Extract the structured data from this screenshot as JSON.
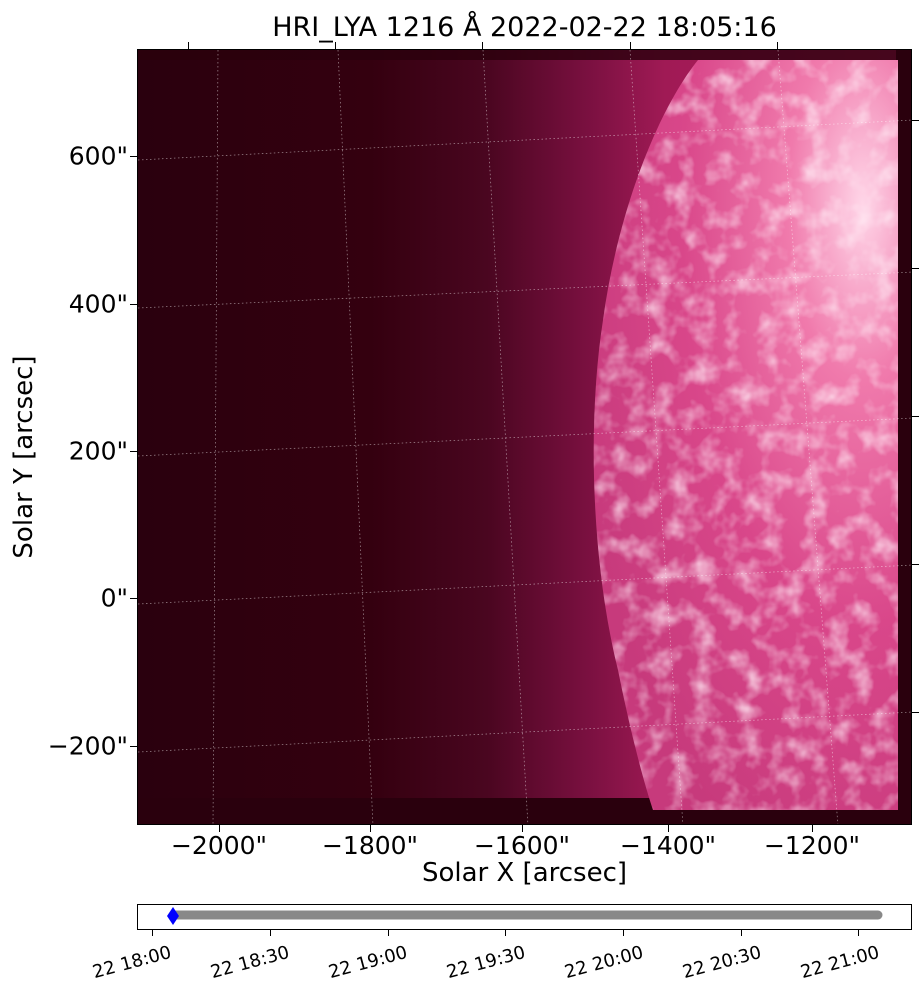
{
  "title": "HRI_LYA 1216 Å 2022-02-22 18:05:16",
  "xlabel": "Solar X [arcsec]",
  "ylabel": "Solar Y [arcsec]",
  "x_ticks": [
    "−2000\"",
    "−1800\"",
    "−1600\"",
    "−1400\"",
    "−1200\""
  ],
  "y_ticks": [
    "600\"",
    "400\"",
    "200\"",
    "0\"",
    "−200\""
  ],
  "timeline": {
    "tick_labels": [
      "22 18:00",
      "22 18:30",
      "22 19:00",
      "22 19:30",
      "22 20:00",
      "22 20:30",
      "22 21:00"
    ],
    "range_start": "18:00",
    "range_end": "21:00",
    "current_time": "18:05:16",
    "marker_color": "#0000ff",
    "bar_color": "#888888"
  },
  "colors": {
    "background_dark": "#2e0010",
    "disk_bright": "#e0508f",
    "disk_highlight": "#ffd0e4"
  }
}
